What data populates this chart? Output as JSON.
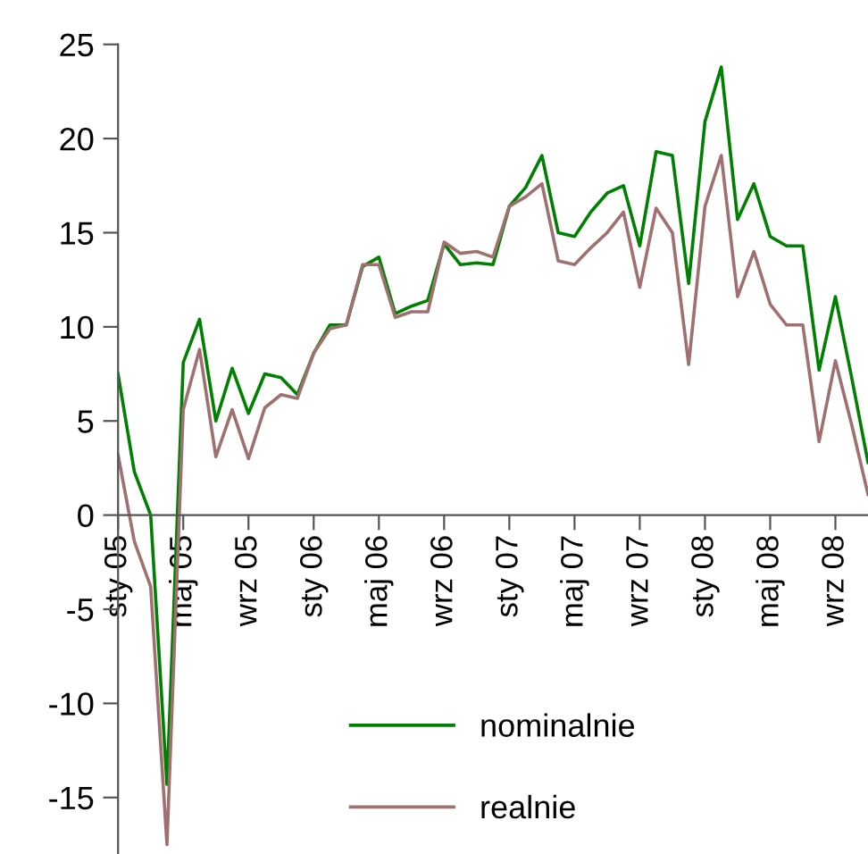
{
  "chart_data": {
    "type": "line",
    "categories": [
      "sty 05",
      null,
      null,
      null,
      "maj 05",
      null,
      null,
      null,
      "wrz 05",
      null,
      null,
      null,
      "sty 06",
      null,
      null,
      null,
      "maj 06",
      null,
      null,
      null,
      "wrz 06",
      null,
      null,
      null,
      "sty 07",
      null,
      null,
      null,
      "maj 07",
      null,
      null,
      null,
      "wrz 07",
      null,
      null,
      null,
      "sty 08",
      null,
      null,
      null,
      "maj 08",
      null,
      null,
      null,
      "wrz 08",
      null,
      null
    ],
    "series": [
      {
        "name": "nominalnie",
        "color": "#008000",
        "values": [
          7.5,
          2.3,
          0,
          -14.3,
          8.1,
          10.4,
          5.0,
          7.8,
          5.4,
          7.5,
          7.3,
          6.4,
          8.6,
          10.1,
          10.1,
          13.2,
          13.7,
          10.7,
          11.1,
          11.4,
          14.4,
          13.3,
          13.4,
          13.3,
          16.4,
          17.4,
          19.1,
          15.0,
          14.8,
          16.1,
          17.1,
          17.5,
          14.3,
          19.3,
          19.1,
          12.3,
          20.9,
          23.8,
          15.7,
          17.6,
          14.8,
          14.3,
          14.3,
          7.7,
          11.6,
          7.3,
          2.8
        ]
      },
      {
        "name": "realnie",
        "color": "#a07070",
        "values": [
          3.2,
          -1.4,
          -3.8,
          -17.5,
          5.6,
          8.8,
          3.1,
          5.6,
          3.0,
          5.7,
          6.4,
          6.2,
          8.6,
          9.9,
          10.1,
          13.3,
          13.3,
          10.5,
          10.8,
          10.8,
          14.5,
          13.9,
          14.0,
          13.7,
          16.4,
          16.9,
          17.6,
          13.5,
          13.3,
          14.2,
          15.0,
          16.1,
          12.1,
          16.3,
          15.0,
          8.0,
          16.4,
          19.1,
          11.6,
          14.0,
          11.2,
          10.1,
          10.1,
          3.9,
          8.2,
          4.8,
          1.1
        ]
      }
    ],
    "ylim": [
      -18,
      25
    ],
    "yticks": [
      -15,
      -10,
      -5,
      0,
      5,
      10,
      15,
      20,
      25
    ],
    "grid": false,
    "legend": "bottom",
    "marker": "none",
    "line_style": "solid"
  }
}
